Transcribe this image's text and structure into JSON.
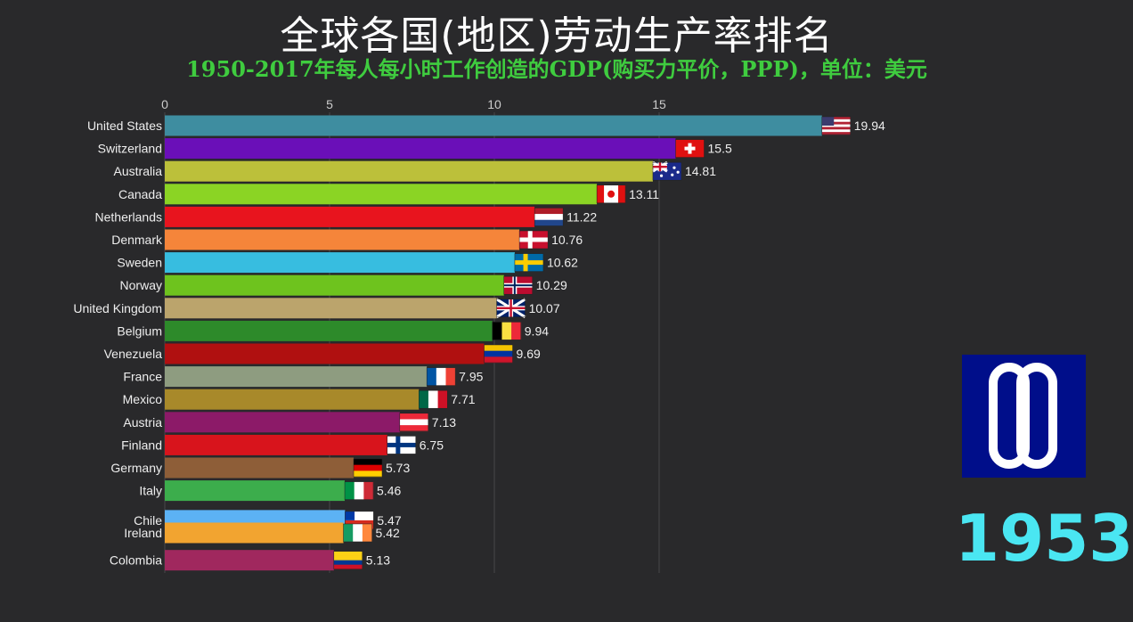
{
  "header": {
    "title": "全球各国(地区)劳动生产率排名",
    "subtitle": "1950-2017年每人每小时工作创造的GDP(购买力平价，PPP)，单位：美元"
  },
  "year_label": "1953",
  "logo_icon": "double-loop-logo",
  "chart_data": {
    "type": "bar",
    "orientation": "horizontal",
    "title": "全球各国(地区)劳动生产率排名",
    "subtitle": "1950-2017年每人每小时工作创造的GDP(购买力平价，PPP)，单位：美元",
    "xlim": [
      0,
      20
    ],
    "x_ticks": [
      "0",
      "5",
      "10",
      "15"
    ],
    "x_tick_values": [
      0,
      5,
      10,
      15
    ],
    "grid": true,
    "categories": [
      "United States",
      "Switzerland",
      "Australia",
      "Canada",
      "Netherlands",
      "Denmark",
      "Sweden",
      "Norway",
      "United Kingdom",
      "Belgium",
      "Venezuela",
      "France",
      "Mexico",
      "Austria",
      "Finland",
      "Germany",
      "Italy",
      "Chile",
      "Ireland",
      "Colombia"
    ],
    "values": [
      19.94,
      15.5,
      14.81,
      13.11,
      11.22,
      10.76,
      10.62,
      10.29,
      10.07,
      9.94,
      9.69,
      7.95,
      7.71,
      7.13,
      6.75,
      5.73,
      5.46,
      5.47,
      5.42,
      5.13
    ],
    "value_labels": [
      "19.94",
      "15.5",
      "14.81",
      "13.11",
      "11.22",
      "10.76",
      "10.62",
      "10.29",
      "10.07",
      "9.94",
      "9.69",
      "7.95",
      "7.71",
      "7.13",
      "6.75",
      "5.73",
      "5.46",
      "5.47",
      "5.42",
      "5.13"
    ],
    "colors": [
      "#3e8da0",
      "#6a0fb8",
      "#bcc03a",
      "#8bd424",
      "#e8141e",
      "#f5853a",
      "#37bde0",
      "#6ec31e",
      "#bba46c",
      "#2d8a2a",
      "#b01010",
      "#8e9c80",
      "#a8892a",
      "#8c1a68",
      "#d8141c",
      "#8e5e38",
      "#3cad4c",
      "#5cb2f4",
      "#f2a430",
      "#a0285e"
    ],
    "flags": [
      "us",
      "ch",
      "au",
      "ca",
      "nl",
      "dk",
      "se",
      "no",
      "gb",
      "be",
      "ve",
      "fr",
      "mx",
      "at",
      "fi",
      "de",
      "it",
      "cl",
      "ie",
      "co"
    ]
  }
}
